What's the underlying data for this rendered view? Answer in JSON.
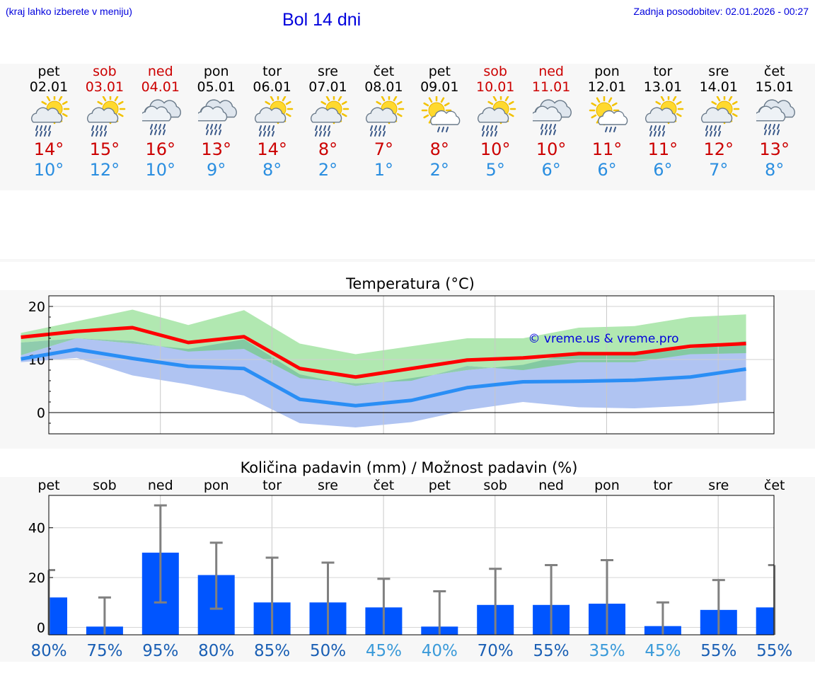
{
  "header": {
    "menu_hint": "(kraj lahko izberete v meniju)",
    "title": "Bol 14 dni",
    "last_update": "Zadnja posodobitev: 02.01.2026 - 00:27"
  },
  "colors": {
    "max_temp": "#cc0000",
    "min_temp": "#2a8ee0",
    "max_line": "#ff0000",
    "min_line": "#2a8ef5",
    "bar": "#0055ff",
    "errorbar": "#808080",
    "band_green": "#a8e6a8",
    "band_blue": "#b0c4f2",
    "band_overlap": "#7cc4a0",
    "watermark": "#0000dd"
  },
  "days": [
    {
      "name": "pet",
      "date": "02.01",
      "weekend": false,
      "icon": "sun-cloud-rain-icon",
      "tmax": "14°",
      "tmin": "10°"
    },
    {
      "name": "sob",
      "date": "03.01",
      "weekend": true,
      "icon": "sun-cloud-rain-icon",
      "tmax": "15°",
      "tmin": "12°"
    },
    {
      "name": "ned",
      "date": "04.01",
      "weekend": true,
      "icon": "cloud-rain-icon",
      "tmax": "16°",
      "tmin": "10°"
    },
    {
      "name": "pon",
      "date": "05.01",
      "weekend": false,
      "icon": "cloud-rain-icon",
      "tmax": "13°",
      "tmin": "9°"
    },
    {
      "name": "tor",
      "date": "06.01",
      "weekend": false,
      "icon": "sun-cloud-rain-icon",
      "tmax": "14°",
      "tmin": "8°"
    },
    {
      "name": "sre",
      "date": "07.01",
      "weekend": false,
      "icon": "sun-cloud-rain-icon",
      "tmax": "8°",
      "tmin": "2°"
    },
    {
      "name": "čet",
      "date": "08.01",
      "weekend": false,
      "icon": "sun-cloud-rain-icon",
      "tmax": "7°",
      "tmin": "1°"
    },
    {
      "name": "pet",
      "date": "09.01",
      "weekend": false,
      "icon": "sun-cloud-light-rain-icon",
      "tmax": "8°",
      "tmin": "2°"
    },
    {
      "name": "sob",
      "date": "10.01",
      "weekend": true,
      "icon": "sun-cloud-rain-icon",
      "tmax": "10°",
      "tmin": "5°"
    },
    {
      "name": "ned",
      "date": "11.01",
      "weekend": true,
      "icon": "cloud-rain-icon",
      "tmax": "10°",
      "tmin": "6°"
    },
    {
      "name": "pon",
      "date": "12.01",
      "weekend": false,
      "icon": "sun-cloud-light-rain-icon",
      "tmax": "11°",
      "tmin": "6°"
    },
    {
      "name": "tor",
      "date": "13.01",
      "weekend": false,
      "icon": "sun-cloud-rain-icon",
      "tmax": "11°",
      "tmin": "6°"
    },
    {
      "name": "sre",
      "date": "14.01",
      "weekend": false,
      "icon": "sun-cloud-rain-icon",
      "tmax": "12°",
      "tmin": "7°"
    },
    {
      "name": "čet",
      "date": "15.01",
      "weekend": false,
      "icon": "cloud-rain-icon",
      "tmax": "13°",
      "tmin": "8°"
    }
  ],
  "chart_data": [
    {
      "type": "line",
      "title": "Temperatura (°C)",
      "x": [
        1,
        2,
        3,
        4,
        5,
        6,
        7,
        8,
        9,
        10,
        11,
        12,
        13,
        14
      ],
      "x_range": [
        0.5,
        13.5
      ],
      "ylim": [
        -4,
        22
      ],
      "yticks": [
        0,
        10,
        20
      ],
      "grid": true,
      "watermark": "© vreme.us & vreme.pro",
      "series": [
        {
          "name": "max",
          "values": [
            14.2,
            15.3,
            16.0,
            13.2,
            14.3,
            8.3,
            6.7,
            8.3,
            9.9,
            10.3,
            11.1,
            11.1,
            12.5,
            13.0
          ]
        },
        {
          "name": "min",
          "values": [
            10.1,
            11.9,
            10.2,
            8.7,
            8.3,
            2.5,
            1.3,
            2.3,
            4.7,
            5.8,
            5.9,
            6.1,
            6.7,
            8.2
          ]
        }
      ],
      "max_band": {
        "upper": [
          15.0,
          17.2,
          19.4,
          16.5,
          19.3,
          13.0,
          11.0,
          12.5,
          14.0,
          14.0,
          16.0,
          16.3,
          18.0,
          18.5
        ],
        "lower": [
          13.2,
          14.0,
          13.5,
          11.5,
          12.0,
          6.5,
          5.5,
          6.0,
          8.8,
          8.0,
          9.5,
          9.5,
          11.0,
          11.2
        ]
      },
      "min_band": {
        "upper": [
          10.8,
          14.0,
          13.0,
          12.0,
          13.8,
          7.2,
          5.0,
          6.5,
          8.0,
          9.0,
          11.5,
          11.0,
          12.0,
          13.5
        ],
        "lower": [
          9.5,
          10.3,
          7.0,
          5.3,
          3.2,
          -2.0,
          -2.8,
          -1.8,
          0.5,
          2.0,
          1.0,
          0.8,
          1.3,
          2.3
        ]
      }
    },
    {
      "type": "bar",
      "title": "Količina padavin (mm) / Možnost padavin (%)",
      "categories": [
        "pet",
        "sob",
        "ned",
        "pon",
        "tor",
        "sre",
        "čet",
        "pet",
        "sob",
        "ned",
        "pon",
        "tor",
        "sre",
        "čet"
      ],
      "values": [
        12,
        0.3,
        30,
        21,
        10,
        10,
        8,
        0.3,
        9,
        9,
        9.5,
        0.5,
        7,
        8
      ],
      "error_low": [
        null,
        0,
        10,
        7.5,
        0,
        0,
        0,
        0,
        0,
        0,
        0,
        0,
        0,
        0
      ],
      "error_high": [
        23,
        12,
        49,
        34,
        28,
        26,
        19.5,
        14.5,
        23.5,
        25,
        27,
        10,
        19,
        25
      ],
      "ylim": [
        -3,
        53
      ],
      "yticks": [
        0,
        20,
        40
      ],
      "grid": true,
      "probabilities": [
        "80%",
        "75%",
        "95%",
        "80%",
        "85%",
        "50%",
        "45%",
        "40%",
        "70%",
        "55%",
        "35%",
        "45%",
        "55%",
        "55%"
      ],
      "probability_colors": [
        "#1a5fb4",
        "#1a5fb4",
        "#1a5fb4",
        "#1a5fb4",
        "#1a5fb4",
        "#1a5fb4",
        "#3a9ad9",
        "#3a9ad9",
        "#1a5fb4",
        "#1a5fb4",
        "#3a9ad9",
        "#3a9ad9",
        "#1a5fb4",
        "#1a5fb4"
      ]
    }
  ]
}
